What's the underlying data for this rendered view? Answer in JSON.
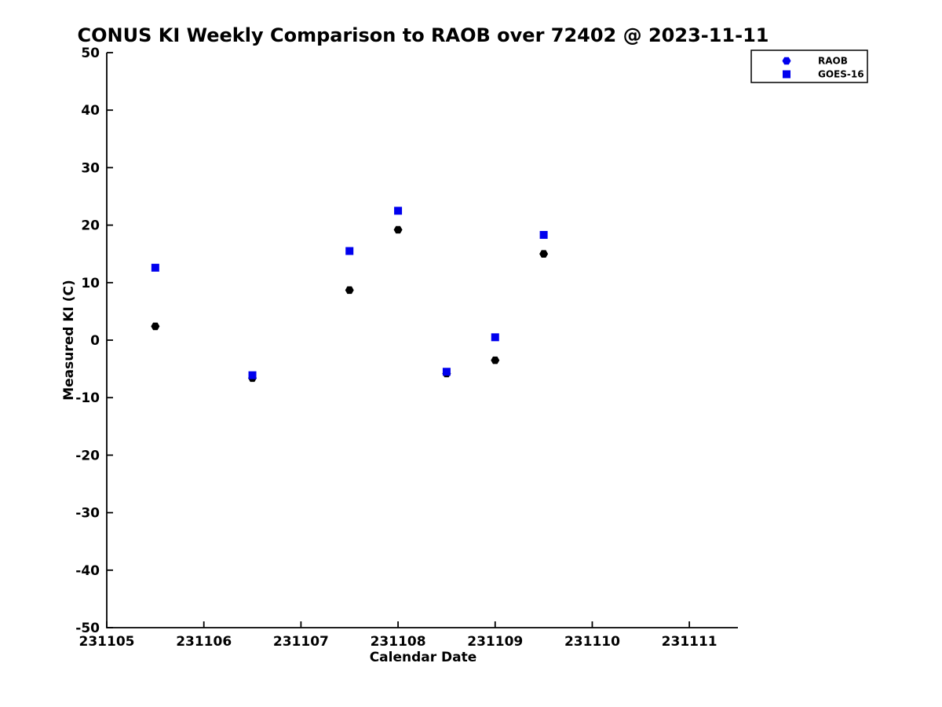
{
  "figure": {
    "background": "#ffffff",
    "axis_color": "#000000"
  },
  "chart_data": {
    "type": "scatter",
    "title": "CONUS KI Weekly Comparison to RAOB over 72402 @ 2023-11-11",
    "xlabel": "Calendar Date",
    "ylabel": "Measured KI (C)",
    "xlim": [
      231105,
      231111.5
    ],
    "ylim": [
      -50,
      50
    ],
    "xticks": [
      231105,
      231106,
      231107,
      231108,
      231109,
      231110,
      231111
    ],
    "yticks": [
      50,
      40,
      30,
      20,
      10,
      0,
      -10,
      -20,
      -30,
      -40,
      -50
    ],
    "grid": false,
    "legend": {
      "position": "top-right-outside",
      "marker_color": "#0000ee",
      "border_color": "#000000",
      "background": "#ffffff"
    },
    "series": [
      {
        "name": "RAOB",
        "marker": "hexagon",
        "color": "#000000",
        "points": [
          {
            "x": 231105.5,
            "y": 2.4
          },
          {
            "x": 231106.5,
            "y": -6.6
          },
          {
            "x": 231107.5,
            "y": 8.7
          },
          {
            "x": 231108.0,
            "y": 19.2
          },
          {
            "x": 231108.5,
            "y": -5.8
          },
          {
            "x": 231109.0,
            "y": -3.5
          },
          {
            "x": 231109.5,
            "y": 15.0
          }
        ]
      },
      {
        "name": "GOES-16",
        "marker": "square",
        "color": "#0000ee",
        "points": [
          {
            "x": 231105.5,
            "y": 12.6
          },
          {
            "x": 231106.5,
            "y": -6.1
          },
          {
            "x": 231107.5,
            "y": 15.5
          },
          {
            "x": 231108.0,
            "y": 22.5
          },
          {
            "x": 231108.5,
            "y": -5.5
          },
          {
            "x": 231109.0,
            "y": 0.5
          },
          {
            "x": 231109.5,
            "y": 18.3
          }
        ]
      }
    ]
  }
}
